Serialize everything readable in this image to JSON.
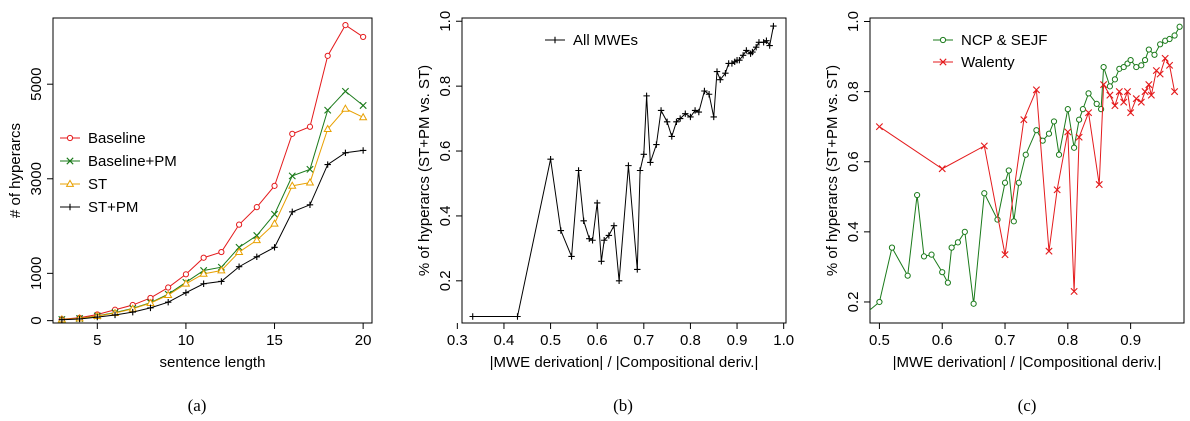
{
  "chart_data": [
    {
      "type": "line",
      "caption": "(a)",
      "xlabel": "sentence length",
      "ylabel": "# of hyperarcs",
      "xlim": [
        2.5,
        20.5
      ],
      "ylim": [
        -50,
        6400
      ],
      "xticks": [
        5,
        10,
        15,
        20
      ],
      "xtick_labels": [
        "5",
        "10",
        "15",
        "20"
      ],
      "yticks": [
        0,
        1000,
        3000,
        5000
      ],
      "ytick_labels": [
        "0",
        "1000",
        "3000",
        "5000"
      ],
      "legend_position": "center-left",
      "x": [
        3,
        4,
        5,
        6,
        7,
        8,
        9,
        10,
        11,
        12,
        13,
        14,
        15,
        16,
        17,
        18,
        19,
        20
      ],
      "series": [
        {
          "name": "Baseline",
          "color": "#e41a1c",
          "marker": "circle",
          "values": [
            30,
            60,
            130,
            230,
            330,
            480,
            700,
            980,
            1330,
            1450,
            2030,
            2400,
            2850,
            3950,
            4100,
            5600,
            6250,
            6000
          ]
        },
        {
          "name": "Baseline+PM",
          "color": "#1a7a1a",
          "marker": "x",
          "values": [
            25,
            45,
            100,
            170,
            260,
            380,
            560,
            810,
            1060,
            1130,
            1550,
            1800,
            2250,
            3060,
            3200,
            4450,
            4850,
            4550
          ]
        },
        {
          "name": "ST",
          "color": "#e8a000",
          "marker": "triangle",
          "values": [
            25,
            45,
            95,
            160,
            250,
            370,
            540,
            780,
            990,
            1060,
            1450,
            1700,
            2050,
            2850,
            2920,
            4050,
            4480,
            4300
          ]
        },
        {
          "name": "ST+PM",
          "color": "#000000",
          "marker": "plus",
          "values": [
            20,
            35,
            75,
            120,
            180,
            270,
            390,
            590,
            780,
            830,
            1140,
            1350,
            1550,
            2300,
            2450,
            3300,
            3550,
            3600
          ]
        }
      ]
    },
    {
      "type": "line",
      "caption": "(b)",
      "xlabel": "|MWE derivation| / |Compositional deriv.|",
      "ylabel": "% of hyperarcs (ST+PM vs. ST)",
      "xlim": [
        0.31,
        1.005
      ],
      "ylim": [
        0.07,
        1.01
      ],
      "xticks": [
        0.3,
        0.4,
        0.5,
        0.6,
        0.7,
        0.8,
        0.9,
        1.0
      ],
      "xtick_labels": [
        "0.3",
        "0.4",
        "0.5",
        "0.6",
        "0.7",
        "0.8",
        "0.9",
        "1.0"
      ],
      "yticks": [
        0.2,
        0.4,
        0.6,
        0.8,
        1.0
      ],
      "ytick_labels": [
        "0.2",
        "0.4",
        "0.6",
        "0.8",
        "1.0"
      ],
      "legend_position": "top-center",
      "series": [
        {
          "name": "All MWEs",
          "color": "#000000",
          "marker": "plus",
          "x": [
            0.333,
            0.429,
            0.5,
            0.522,
            0.545,
            0.56,
            0.571,
            0.583,
            0.59,
            0.6,
            0.609,
            0.615,
            0.625,
            0.636,
            0.647,
            0.667,
            0.686,
            0.692,
            0.7,
            0.706,
            0.714,
            0.727,
            0.737,
            0.75,
            0.76,
            0.77,
            0.778,
            0.789,
            0.8,
            0.81,
            0.818,
            0.83,
            0.84,
            0.85,
            0.857,
            0.864,
            0.875,
            0.882,
            0.889,
            0.895,
            0.9,
            0.905,
            0.913,
            0.92,
            0.929,
            0.933,
            0.941,
            0.947,
            0.957,
            0.963,
            0.97,
            0.978
          ],
          "values": [
            0.09,
            0.09,
            0.575,
            0.355,
            0.275,
            0.54,
            0.385,
            0.33,
            0.325,
            0.44,
            0.26,
            0.325,
            0.34,
            0.37,
            0.2,
            0.555,
            0.235,
            0.54,
            0.59,
            0.77,
            0.565,
            0.62,
            0.725,
            0.69,
            0.645,
            0.69,
            0.7,
            0.715,
            0.705,
            0.725,
            0.72,
            0.785,
            0.775,
            0.705,
            0.845,
            0.82,
            0.84,
            0.87,
            0.87,
            0.875,
            0.88,
            0.88,
            0.895,
            0.91,
            0.9,
            0.905,
            0.92,
            0.935,
            0.935,
            0.94,
            0.925,
            0.985
          ]
        }
      ]
    },
    {
      "type": "line",
      "caption": "(c)",
      "xlabel": "|MWE derivation| / |Compositional deriv.|",
      "ylabel": "% of hyperarcs (ST+PM vs. ST)",
      "xlim": [
        0.485,
        0.985
      ],
      "ylim": [
        0.14,
        1.01
      ],
      "xticks": [
        0.5,
        0.6,
        0.7,
        0.8,
        0.9
      ],
      "xtick_labels": [
        "0.5",
        "0.6",
        "0.7",
        "0.8",
        "0.9"
      ],
      "yticks": [
        0.2,
        0.4,
        0.6,
        0.8,
        1.0
      ],
      "ytick_labels": [
        "0.2",
        "0.4",
        "0.6",
        "0.8",
        "1.0"
      ],
      "legend_position": "top-left",
      "series": [
        {
          "name": "NCP & SEJF",
          "color": "#1a7a1a",
          "marker": "circle",
          "x": [
            0.48,
            0.5,
            0.52,
            0.545,
            0.56,
            0.571,
            0.583,
            0.6,
            0.609,
            0.615,
            0.625,
            0.636,
            0.65,
            0.667,
            0.688,
            0.7,
            0.706,
            0.714,
            0.722,
            0.733,
            0.75,
            0.76,
            0.77,
            0.778,
            0.786,
            0.8,
            0.81,
            0.818,
            0.824,
            0.833,
            0.846,
            0.853,
            0.857,
            0.867,
            0.875,
            0.882,
            0.889,
            0.895,
            0.9,
            0.909,
            0.917,
            0.923,
            0.929,
            0.938,
            0.947,
            0.955,
            0.962,
            0.97,
            0.978
          ],
          "values": [
            0.17,
            0.2,
            0.355,
            0.275,
            0.505,
            0.33,
            0.335,
            0.285,
            0.255,
            0.355,
            0.37,
            0.4,
            0.195,
            0.51,
            0.435,
            0.54,
            0.575,
            0.43,
            0.54,
            0.62,
            0.69,
            0.66,
            0.68,
            0.715,
            0.62,
            0.75,
            0.64,
            0.72,
            0.75,
            0.795,
            0.765,
            0.75,
            0.87,
            0.815,
            0.835,
            0.865,
            0.87,
            0.88,
            0.89,
            0.87,
            0.875,
            0.89,
            0.92,
            0.905,
            0.935,
            0.945,
            0.95,
            0.96,
            0.985
          ]
        },
        {
          "name": "Walenty",
          "color": "#e41a1c",
          "marker": "x",
          "x": [
            0.5,
            0.6,
            0.667,
            0.7,
            0.73,
            0.75,
            0.77,
            0.783,
            0.8,
            0.81,
            0.818,
            0.833,
            0.85,
            0.857,
            0.867,
            0.875,
            0.882,
            0.889,
            0.895,
            0.9,
            0.909,
            0.917,
            0.923,
            0.929,
            0.933,
            0.941,
            0.947,
            0.955,
            0.962,
            0.97
          ],
          "values": [
            0.7,
            0.58,
            0.645,
            0.335,
            0.72,
            0.805,
            0.345,
            0.52,
            0.685,
            0.23,
            0.67,
            0.74,
            0.535,
            0.82,
            0.79,
            0.76,
            0.8,
            0.77,
            0.8,
            0.74,
            0.78,
            0.77,
            0.8,
            0.82,
            0.79,
            0.86,
            0.85,
            0.895,
            0.875,
            0.8
          ]
        }
      ]
    }
  ]
}
